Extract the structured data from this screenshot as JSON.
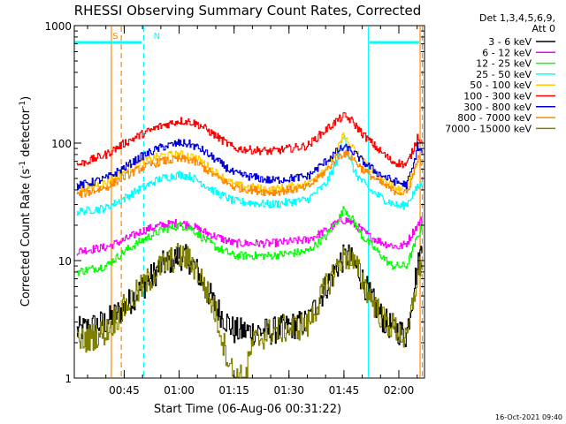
{
  "chart_data": {
    "type": "line",
    "title": "RHESSI Observing Summary Count Rates, Corrected",
    "xlabel": "Start Time (06-Aug-06 00:31:22)",
    "ylabel_main": "Corrected Count Rate (s",
    "ylabel_sup1": "-1",
    "ylabel_mid": " detector",
    "ylabel_sup2": "-1",
    "ylabel_end": ")",
    "yscale": "log",
    "ylim": [
      1,
      1000
    ],
    "xlim_minutes": [
      31.37,
      127
    ],
    "x_ticks": [
      {
        "t": 45,
        "label": "00:45"
      },
      {
        "t": 60,
        "label": "01:00"
      },
      {
        "t": 75,
        "label": "01:15"
      },
      {
        "t": 90,
        "label": "01:30"
      },
      {
        "t": 105,
        "label": "01:45"
      },
      {
        "t": 120,
        "label": "02:00"
      }
    ],
    "y_ticks": [
      {
        "v": 1,
        "label": "1"
      },
      {
        "v": 10,
        "label": "10"
      },
      {
        "v": 100,
        "label": "100"
      },
      {
        "v": 1000,
        "label": "1000"
      }
    ],
    "legend_header": [
      "Det 1,3,4,5,6,9,",
      "Att 0"
    ],
    "legend_position": "right",
    "series": [
      {
        "name": "3 - 6 keV",
        "color": "#000000",
        "points": [
          [
            32,
            2.5
          ],
          [
            40,
            3
          ],
          [
            45,
            4
          ],
          [
            50,
            6
          ],
          [
            55,
            9
          ],
          [
            60,
            11
          ],
          [
            63,
            10
          ],
          [
            66,
            7
          ],
          [
            70,
            4
          ],
          [
            75,
            2.5
          ],
          [
            85,
            2.5
          ],
          [
            95,
            3
          ],
          [
            100,
            6
          ],
          [
            104,
            10
          ],
          [
            106,
            11
          ],
          [
            109,
            8
          ],
          [
            112,
            5
          ],
          [
            116,
            3
          ],
          [
            120,
            2.5
          ],
          [
            122,
            2.3
          ],
          [
            124,
            6
          ],
          [
            126,
            12
          ]
        ]
      },
      {
        "name": "6 - 12 keV",
        "color": "#ff00ff",
        "points": [
          [
            32,
            12
          ],
          [
            40,
            13
          ],
          [
            45,
            15
          ],
          [
            50,
            18
          ],
          [
            55,
            20
          ],
          [
            60,
            21
          ],
          [
            63,
            20
          ],
          [
            66,
            18
          ],
          [
            70,
            16
          ],
          [
            75,
            14
          ],
          [
            85,
            14
          ],
          [
            95,
            15
          ],
          [
            100,
            18
          ],
          [
            104,
            22
          ],
          [
            106,
            22
          ],
          [
            109,
            19
          ],
          [
            112,
            16
          ],
          [
            116,
            14
          ],
          [
            120,
            13
          ],
          [
            122,
            14
          ],
          [
            124,
            18
          ],
          [
            126,
            22
          ]
        ]
      },
      {
        "name": "12 - 25 keV",
        "color": "#00ff00",
        "points": [
          [
            32,
            8
          ],
          [
            40,
            9
          ],
          [
            45,
            12
          ],
          [
            50,
            15
          ],
          [
            55,
            18
          ],
          [
            60,
            20
          ],
          [
            63,
            19
          ],
          [
            66,
            16
          ],
          [
            70,
            13
          ],
          [
            75,
            11
          ],
          [
            85,
            11
          ],
          [
            95,
            12
          ],
          [
            100,
            16
          ],
          [
            104,
            24
          ],
          [
            105,
            28
          ],
          [
            107,
            23
          ],
          [
            110,
            16
          ],
          [
            114,
            12
          ],
          [
            118,
            9
          ],
          [
            122,
            9
          ],
          [
            124,
            13
          ],
          [
            126,
            19
          ]
        ]
      },
      {
        "name": "25 - 50 keV",
        "color": "#00ffff",
        "points": [
          [
            32,
            26
          ],
          [
            40,
            28
          ],
          [
            45,
            34
          ],
          [
            50,
            42
          ],
          [
            55,
            50
          ],
          [
            60,
            54
          ],
          [
            63,
            52
          ],
          [
            66,
            46
          ],
          [
            70,
            38
          ],
          [
            75,
            32
          ],
          [
            85,
            30
          ],
          [
            95,
            33
          ],
          [
            100,
            45
          ],
          [
            103,
            70
          ],
          [
            105,
            125
          ],
          [
            106,
            80
          ],
          [
            108,
            55
          ],
          [
            112,
            40
          ],
          [
            116,
            33
          ],
          [
            120,
            29
          ],
          [
            122,
            30
          ],
          [
            124,
            38
          ],
          [
            126,
            45
          ]
        ]
      },
      {
        "name": "50 - 100 keV",
        "color": "#ffcc00",
        "points": [
          [
            32,
            40
          ],
          [
            40,
            46
          ],
          [
            45,
            58
          ],
          [
            50,
            70
          ],
          [
            55,
            78
          ],
          [
            60,
            80
          ],
          [
            63,
            78
          ],
          [
            66,
            70
          ],
          [
            70,
            56
          ],
          [
            75,
            44
          ],
          [
            85,
            40
          ],
          [
            95,
            45
          ],
          [
            100,
            62
          ],
          [
            103,
            85
          ],
          [
            105,
            120
          ],
          [
            106,
            100
          ],
          [
            108,
            85
          ],
          [
            112,
            62
          ],
          [
            116,
            48
          ],
          [
            120,
            40
          ],
          [
            122,
            42
          ],
          [
            124,
            60
          ],
          [
            126,
            75
          ]
        ]
      },
      {
        "name": "100 - 300 keV",
        "color": "#ff0000",
        "points": [
          [
            32,
            65
          ],
          [
            40,
            80
          ],
          [
            45,
            100
          ],
          [
            50,
            120
          ],
          [
            55,
            140
          ],
          [
            60,
            155
          ],
          [
            63,
            152
          ],
          [
            66,
            140
          ],
          [
            70,
            115
          ],
          [
            75,
            90
          ],
          [
            85,
            85
          ],
          [
            95,
            95
          ],
          [
            100,
            130
          ],
          [
            103,
            155
          ],
          [
            105,
            170
          ],
          [
            107,
            155
          ],
          [
            110,
            120
          ],
          [
            114,
            90
          ],
          [
            118,
            70
          ],
          [
            122,
            65
          ],
          [
            124,
            90
          ],
          [
            125,
            115
          ],
          [
            126,
            105
          ]
        ]
      },
      {
        "name": "300 - 800 keV",
        "color": "#0000dd",
        "points": [
          [
            32,
            43
          ],
          [
            40,
            50
          ],
          [
            45,
            62
          ],
          [
            50,
            78
          ],
          [
            55,
            92
          ],
          [
            60,
            100
          ],
          [
            63,
            98
          ],
          [
            66,
            88
          ],
          [
            70,
            72
          ],
          [
            75,
            55
          ],
          [
            85,
            48
          ],
          [
            95,
            52
          ],
          [
            100,
            70
          ],
          [
            103,
            85
          ],
          [
            105,
            92
          ],
          [
            107,
            86
          ],
          [
            110,
            70
          ],
          [
            114,
            56
          ],
          [
            118,
            48
          ],
          [
            122,
            44
          ],
          [
            124,
            65
          ],
          [
            125,
            95
          ],
          [
            126,
            85
          ]
        ]
      },
      {
        "name": "800 - 7000 keV",
        "color": "#ff8800",
        "points": [
          [
            32,
            36
          ],
          [
            40,
            42
          ],
          [
            45,
            52
          ],
          [
            50,
            62
          ],
          [
            55,
            70
          ],
          [
            60,
            73
          ],
          [
            63,
            72
          ],
          [
            66,
            64
          ],
          [
            70,
            52
          ],
          [
            75,
            42
          ],
          [
            85,
            38
          ],
          [
            95,
            42
          ],
          [
            100,
            58
          ],
          [
            103,
            76
          ],
          [
            105,
            82
          ],
          [
            107,
            76
          ],
          [
            110,
            60
          ],
          [
            114,
            48
          ],
          [
            118,
            40
          ],
          [
            122,
            37
          ],
          [
            124,
            55
          ],
          [
            125,
            75
          ],
          [
            126,
            68
          ]
        ]
      },
      {
        "name": "7000 - 15000 keV",
        "color": "#808000",
        "points": [
          [
            32,
            2
          ],
          [
            40,
            2.5
          ],
          [
            45,
            4
          ],
          [
            50,
            6
          ],
          [
            55,
            9
          ],
          [
            60,
            11
          ],
          [
            63,
            10
          ],
          [
            66,
            7
          ],
          [
            70,
            3.5
          ],
          [
            72,
            2
          ],
          [
            75,
            1
          ],
          [
            78,
            1
          ],
          [
            80,
            2
          ],
          [
            85,
            2.5
          ],
          [
            95,
            2.8
          ],
          [
            100,
            6
          ],
          [
            104,
            10
          ],
          [
            106,
            11
          ],
          [
            109,
            8
          ],
          [
            112,
            5
          ],
          [
            116,
            3
          ],
          [
            120,
            2.5
          ],
          [
            122,
            2
          ],
          [
            124,
            5
          ],
          [
            126,
            10
          ]
        ]
      }
    ],
    "markers": [
      {
        "type": "solid",
        "color": "#ff8800",
        "t": 41.5
      },
      {
        "type": "dashed",
        "color": "#ff8800",
        "t": 44.2
      },
      {
        "type": "dashed",
        "color": "#00ffff",
        "t": 50.3
      },
      {
        "type": "solid",
        "color": "#00ffff",
        "t": 111.7
      },
      {
        "type": "solid",
        "color": "#ff8800",
        "t": 125.8
      },
      {
        "type": "dashed",
        "color": "#ff8800",
        "t": 126.4
      }
    ],
    "top_bars": [
      {
        "label": "S",
        "color": "#ff8800",
        "t0": 42,
        "t1": 44.4,
        "label_t": 41.8
      },
      {
        "label": "N",
        "color": "#00ffff",
        "t0": 31.5,
        "t1": 49.8,
        "label_t": 53
      },
      {
        "label": "",
        "color": "#00ffff",
        "t0": 112,
        "t1": 125.5,
        "label_t": 112
      }
    ]
  },
  "footer_timestamp": "16-Oct-2021 09:40"
}
